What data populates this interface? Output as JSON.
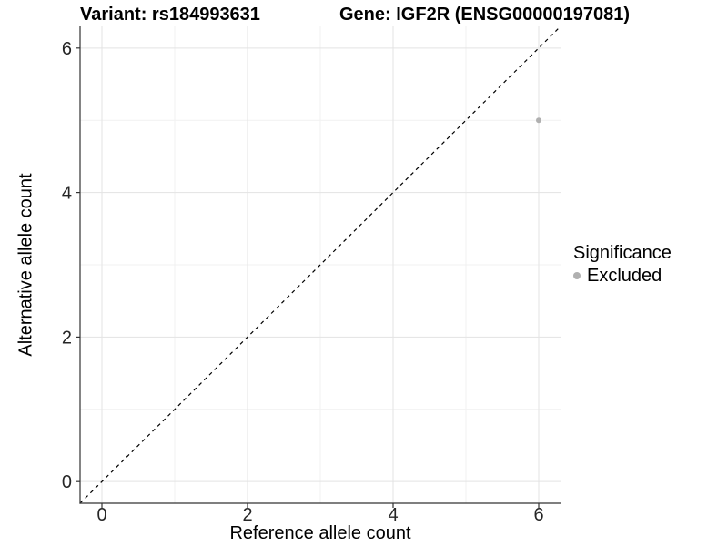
{
  "chart_data": {
    "type": "scatter",
    "titles": {
      "left": "Variant: rs184993631",
      "right": "Gene: IGF2R (ENSG00000197081)"
    },
    "xlabel": "Reference allele count",
    "ylabel": "Alternative allele count",
    "xlim": [
      -0.3,
      6.3
    ],
    "ylim": [
      -0.3,
      6.3
    ],
    "x_ticks": [
      0,
      2,
      4,
      6
    ],
    "y_ticks": [
      0,
      2,
      4,
      6
    ],
    "x_minor_ticks": [
      1,
      3,
      5
    ],
    "y_minor_ticks": [
      1,
      3,
      5
    ],
    "grid": "major+minor",
    "identity_line": {
      "style": "dashed",
      "from": [
        -0.3,
        -0.3
      ],
      "to": [
        6.3,
        6.3
      ],
      "color": "#000000"
    },
    "series": [
      {
        "name": "Excluded",
        "color": "#b0b0b0",
        "points": [
          {
            "x": 6,
            "y": 5
          }
        ]
      }
    ],
    "legend": {
      "title": "Significance",
      "position": "right",
      "items": [
        {
          "label": "Excluded",
          "color": "#b0b0b0"
        }
      ]
    }
  },
  "colors": {
    "background": "#ffffff",
    "major_grid": "#e3e3e3",
    "minor_grid": "#f1f1f1",
    "axis_line": "#333333",
    "tick_mark": "#333333",
    "tick_text": "#262626",
    "title_text": "#000000",
    "point": "#b0b0b0"
  }
}
